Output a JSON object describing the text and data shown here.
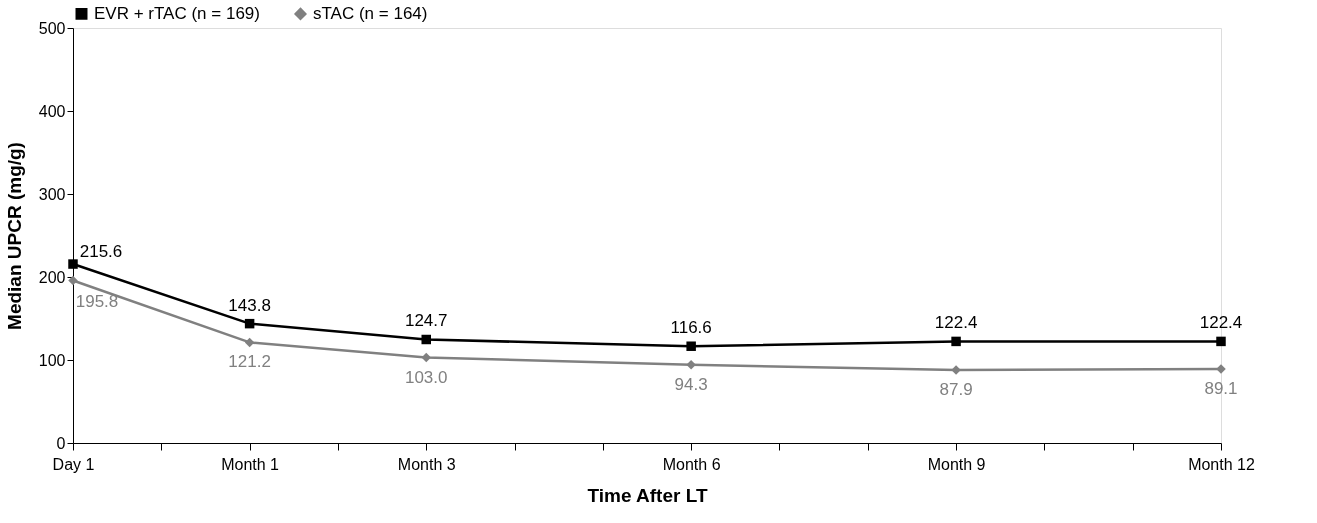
{
  "chart_data": {
    "type": "line",
    "xlabel": "Time After LT",
    "ylabel": "Median UPCR (mg/g)",
    "categories": [
      "Day 1",
      null,
      "Month 1",
      null,
      "Month 3",
      null,
      null,
      "Month 6",
      null,
      null,
      "Month 9",
      null,
      null,
      "Month 12"
    ],
    "series": [
      {
        "name": "EVR + rTAC (n = 169)",
        "color": "#000000",
        "marker": "square",
        "values": [
          215.6,
          null,
          143.8,
          null,
          124.7,
          null,
          null,
          116.6,
          null,
          null,
          122.4,
          null,
          null,
          122.4
        ],
        "value_labels": [
          "215.6",
          null,
          "143.8",
          null,
          "124.7",
          null,
          null,
          "116.6",
          null,
          null,
          "122.4",
          null,
          null,
          "122.4"
        ]
      },
      {
        "name": "sTAC (n = 164)",
        "color": "#808080",
        "marker": "diamond",
        "values": [
          195.8,
          null,
          121.2,
          null,
          103.0,
          null,
          null,
          94.3,
          null,
          null,
          87.9,
          null,
          null,
          89.1
        ],
        "value_labels": [
          "195.8",
          null,
          "121.2",
          null,
          "103.0",
          null,
          null,
          "94.3",
          null,
          null,
          "87.9",
          null,
          null,
          "89.1"
        ]
      }
    ],
    "ylim": [
      0,
      500
    ],
    "yticks": [
      0,
      100,
      200,
      300,
      400,
      500
    ],
    "grid": false,
    "legend": "top",
    "line_style": "solid"
  }
}
